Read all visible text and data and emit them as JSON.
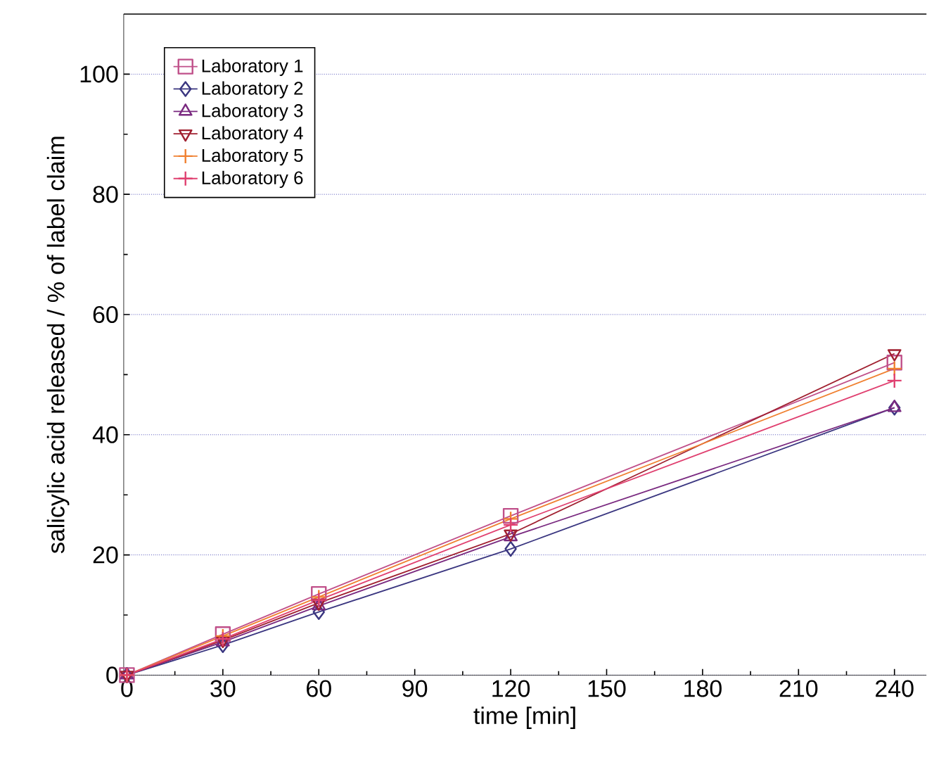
{
  "chart_data": {
    "type": "line",
    "xlabel": "time [min]",
    "ylabel": "salicylic acid released / % of label claim",
    "x": [
      0,
      30,
      60,
      120,
      240
    ],
    "series": [
      {
        "name": "Laboratory 1",
        "color": "#c0508a",
        "marker": "square",
        "values": [
          0,
          6.8,
          13.5,
          26.5,
          52
        ]
      },
      {
        "name": "Laboratory 2",
        "color": "#3a3680",
        "marker": "diamond",
        "values": [
          0,
          5,
          10.5,
          21,
          44.5
        ]
      },
      {
        "name": "Laboratory 3",
        "color": "#7a2a80",
        "marker": "triangle",
        "values": [
          0,
          5.5,
          11.5,
          23,
          44.5
        ]
      },
      {
        "name": "Laboratory 4",
        "color": "#a02030",
        "marker": "triangle down",
        "values": [
          0,
          5.8,
          12,
          23.5,
          53.5
        ]
      },
      {
        "name": "Laboratory 5",
        "color": "#f08030",
        "marker": "cross",
        "values": [
          0,
          6.5,
          13,
          26,
          51
        ]
      },
      {
        "name": "Laboratory 6",
        "color": "#e04070",
        "marker": "cross",
        "values": [
          0,
          6,
          12.5,
          25,
          49
        ]
      }
    ],
    "xlim": [
      -1,
      250
    ],
    "ylim": [
      0,
      110
    ],
    "xticks": [
      0,
      30,
      60,
      90,
      120,
      150,
      180,
      210,
      240
    ],
    "yticks": [
      0,
      20,
      40,
      60,
      80,
      100
    ],
    "grid": "y",
    "legend": "top left",
    "line_style": "solid"
  }
}
